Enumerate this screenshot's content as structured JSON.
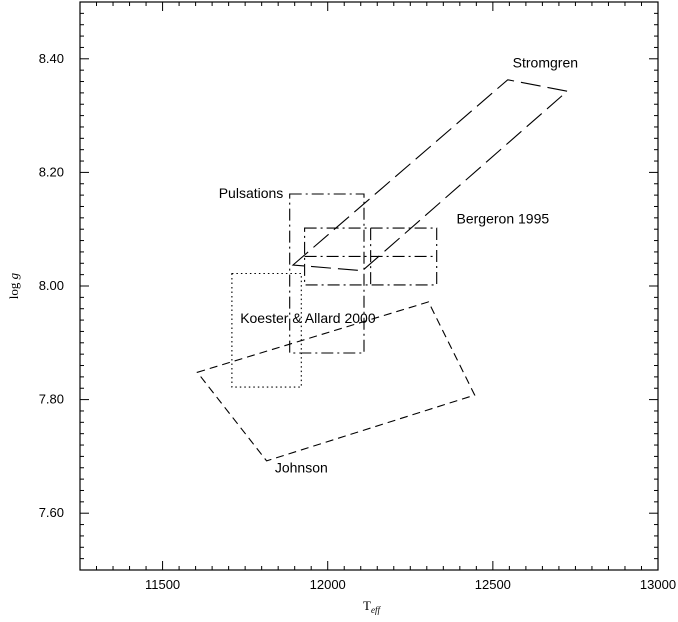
{
  "chart_data": {
    "type": "scatter",
    "title": "",
    "xlabel": "T",
    "xlabel_subscript": "eff",
    "ylabel": "log g",
    "xlim": [
      11250,
      13000
    ],
    "ylim": [
      7.5,
      8.5
    ],
    "xticks": [
      11500,
      12000,
      12500,
      13000
    ],
    "yticks": [
      7.6,
      7.8,
      8.0,
      8.2,
      8.4
    ],
    "grid": false,
    "legend": "none",
    "series": [
      {
        "name": "Stromgren",
        "dash": "long-dash",
        "points": [
          [
            11895,
            8.037
          ],
          [
            12545,
            8.363
          ],
          [
            12725,
            8.343
          ],
          [
            12105,
            8.027
          ]
        ],
        "closed": true
      },
      {
        "name": "Pulsations",
        "dash": "dash-dot",
        "points": [
          [
            11885,
            8.162
          ],
          [
            12110,
            8.162
          ],
          [
            12110,
            7.882
          ],
          [
            11885,
            7.882
          ]
        ],
        "closed": true
      },
      {
        "name": "Bergeron 1995",
        "dash": "dash-dot",
        "points": [
          [
            11930,
            8.102
          ],
          [
            12330,
            8.102
          ],
          [
            12330,
            8.002
          ],
          [
            11930,
            8.002
          ]
        ],
        "closed": true,
        "inner_lines": [
          [
            [
              12130,
              8.102
            ],
            [
              12130,
              8.002
            ]
          ],
          [
            [
              11930,
              8.052
            ],
            [
              12330,
              8.052
            ]
          ]
        ]
      },
      {
        "name": "Koester & Allard 2000",
        "dash": "dotted",
        "points": [
          [
            11710,
            8.022
          ],
          [
            11920,
            8.022
          ],
          [
            11920,
            7.822
          ],
          [
            11710,
            7.822
          ]
        ],
        "closed": true
      },
      {
        "name": "Johnson",
        "dash": "short-dash",
        "points": [
          [
            11605,
            7.848
          ],
          [
            12305,
            7.972
          ],
          [
            12445,
            7.808
          ],
          [
            11815,
            7.692
          ]
        ],
        "closed": true
      }
    ],
    "annotations": [
      {
        "text": "Stromgren",
        "x": 12560,
        "y": 8.385
      },
      {
        "text": "Pulsations",
        "x": 11670,
        "y": 8.155
      },
      {
        "text": "Bergeron 1995",
        "x": 12390,
        "y": 8.11
      },
      {
        "text": "Koester & Allard 2000",
        "x": 11735,
        "y": 7.935
      },
      {
        "text": "Johnson",
        "x": 11840,
        "y": 7.672
      }
    ]
  }
}
